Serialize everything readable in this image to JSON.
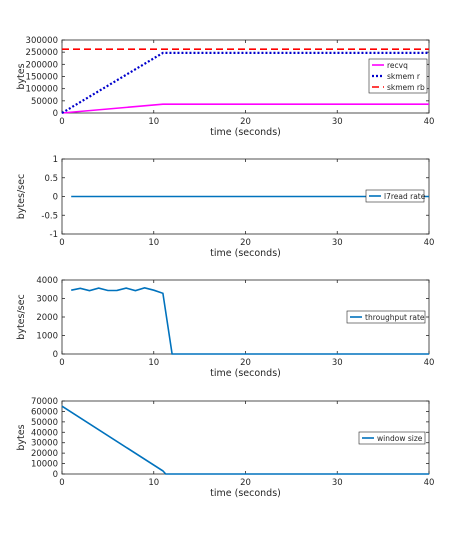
{
  "chart_data": [
    {
      "type": "line",
      "xlabel": "time (seconds)",
      "ylabel": "bytes",
      "xlim": [
        0,
        40
      ],
      "ylim": [
        0,
        300000
      ],
      "xticks": [
        "0",
        "10",
        "20",
        "30",
        "40"
      ],
      "yticks": [
        "0",
        "50000",
        "100000",
        "150000",
        "200000",
        "250000",
        "300000"
      ],
      "legend": "right",
      "series": [
        {
          "name": "recvq",
          "color": "#ff00ff",
          "dash": "solid",
          "x": [
            0,
            11,
            40
          ],
          "y": [
            0,
            36000,
            36000
          ]
        },
        {
          "name": "skmem r",
          "color": "#0000cc",
          "dash": "dotted",
          "x": [
            0,
            11,
            40
          ],
          "y": [
            0,
            247000,
            247000
          ]
        },
        {
          "name": "skmem rb",
          "color": "#ff0000",
          "dash": "dashed",
          "x": [
            0,
            40
          ],
          "y": [
            262000,
            262000
          ]
        }
      ]
    },
    {
      "type": "line",
      "xlabel": "time (seconds)",
      "ylabel": "bytes/sec",
      "xlim": [
        0,
        40
      ],
      "ylim": [
        -1,
        1
      ],
      "xticks": [
        "0",
        "10",
        "20",
        "30",
        "40"
      ],
      "yticks": [
        "-1",
        "-0.5",
        "0",
        "0.5",
        "1"
      ],
      "legend": "right",
      "series": [
        {
          "name": "l7read rate",
          "color": "#0072bd",
          "dash": "solid",
          "x": [
            1,
            40
          ],
          "y": [
            0,
            0
          ]
        }
      ]
    },
    {
      "type": "line",
      "xlabel": "time (seconds)",
      "ylabel": "bytes/sec",
      "xlim": [
        0,
        40
      ],
      "ylim": [
        0,
        4000
      ],
      "xticks": [
        "0",
        "10",
        "20",
        "30",
        "40"
      ],
      "yticks": [
        "0",
        "1000",
        "2000",
        "3000",
        "4000"
      ],
      "legend": "right",
      "series": [
        {
          "name": "throughput rate",
          "color": "#0072bd",
          "dash": "solid",
          "x": [
            1,
            2,
            3,
            4,
            5,
            6,
            7,
            8,
            9,
            10,
            11,
            12,
            40
          ],
          "y": [
            3450,
            3550,
            3420,
            3560,
            3430,
            3440,
            3560,
            3420,
            3580,
            3450,
            3280,
            0,
            0
          ]
        }
      ]
    },
    {
      "type": "line",
      "xlabel": "time (seconds)",
      "ylabel": "bytes",
      "xlim": [
        0,
        40
      ],
      "ylim": [
        0,
        70000
      ],
      "xticks": [
        "0",
        "10",
        "20",
        "30",
        "40"
      ],
      "yticks": [
        "0",
        "10000",
        "20000",
        "30000",
        "40000",
        "50000",
        "60000",
        "70000"
      ],
      "legend": "right",
      "series": [
        {
          "name": "window size",
          "color": "#0072bd",
          "dash": "solid",
          "x": [
            0,
            11,
            11.3,
            40
          ],
          "y": [
            65000,
            3000,
            0,
            0
          ]
        }
      ]
    }
  ]
}
